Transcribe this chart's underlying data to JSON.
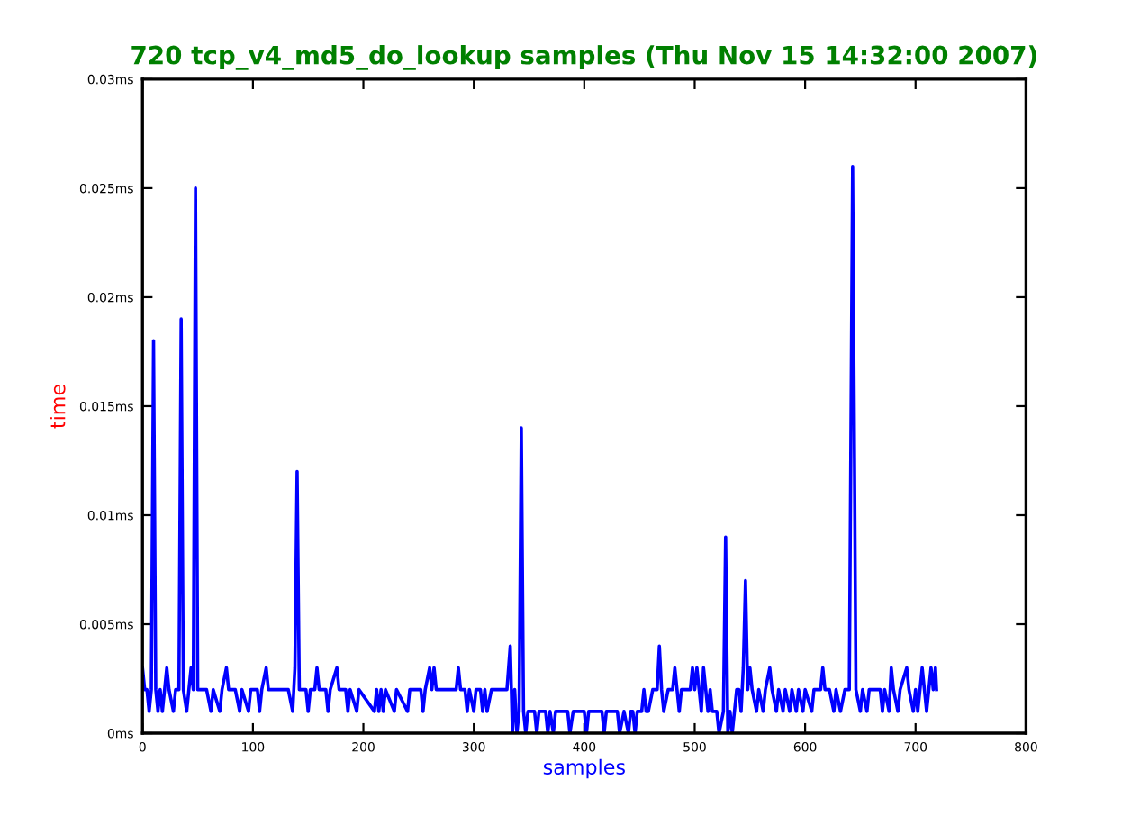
{
  "chart_data": {
    "type": "line",
    "title": "720 tcp_v4_md5_do_lookup samples (Thu Nov 15 14:32:00 2007)",
    "xlabel": "samples",
    "ylabel": "time",
    "series": [
      {
        "color": "#0000ff",
        "x": [
          0,
          2,
          4,
          6,
          8,
          10,
          12,
          14,
          16,
          18,
          20,
          22,
          24,
          28,
          30,
          33,
          35,
          37,
          40,
          42,
          44,
          46,
          48,
          50,
          58,
          62,
          64,
          70,
          72,
          76,
          78,
          84,
          88,
          90,
          96,
          98,
          104,
          106,
          108,
          112,
          114,
          132,
          136,
          138,
          140,
          142,
          148,
          150,
          152,
          156,
          158,
          160,
          166,
          168,
          170,
          176,
          178,
          184,
          186,
          188,
          194,
          196,
          210,
          212,
          214,
          216,
          218,
          220,
          228,
          230,
          240,
          242,
          252,
          254,
          256,
          260,
          262,
          264,
          266,
          284,
          286,
          288,
          292,
          294,
          296,
          300,
          302,
          306,
          308,
          310,
          312,
          316,
          330,
          333,
          335,
          337,
          339,
          341,
          343,
          345,
          347,
          349,
          355,
          357,
          359,
          365,
          367,
          369,
          372,
          374,
          385,
          387,
          390,
          400,
          402,
          404,
          416,
          418,
          420,
          430,
          432,
          436,
          440,
          442,
          444,
          446,
          448,
          452,
          454,
          456,
          458,
          462,
          466,
          468,
          470,
          472,
          476,
          480,
          482,
          484,
          486,
          488,
          496,
          498,
          500,
          502,
          504,
          506,
          508,
          510,
          512,
          514,
          516,
          520,
          522,
          526,
          528,
          530,
          532,
          534,
          536,
          538,
          540,
          542,
          544,
          546,
          548,
          550,
          552,
          556,
          558,
          562,
          564,
          568,
          570,
          574,
          576,
          580,
          582,
          586,
          588,
          592,
          594,
          598,
          600,
          606,
          608,
          614,
          616,
          618,
          622,
          626,
          628,
          632,
          636,
          640,
          643,
          646,
          650,
          652,
          656,
          658,
          668,
          670,
          672,
          676,
          678,
          680,
          684,
          686,
          692,
          694,
          698,
          700,
          702,
          706,
          708,
          710,
          712,
          714,
          716,
          718,
          719
        ],
        "values": [
          0.003,
          0.002,
          0.002,
          0.001,
          0.002,
          0.018,
          0.002,
          0.001,
          0.002,
          0.001,
          0.002,
          0.003,
          0.002,
          0.001,
          0.002,
          0.002,
          0.019,
          0.002,
          0.001,
          0.002,
          0.003,
          0.002,
          0.025,
          0.002,
          0.002,
          0.001,
          0.002,
          0.001,
          0.002,
          0.003,
          0.002,
          0.002,
          0.001,
          0.002,
          0.001,
          0.002,
          0.002,
          0.001,
          0.002,
          0.003,
          0.002,
          0.002,
          0.001,
          0.003,
          0.012,
          0.002,
          0.002,
          0.001,
          0.002,
          0.002,
          0.003,
          0.002,
          0.002,
          0.001,
          0.002,
          0.003,
          0.002,
          0.002,
          0.001,
          0.002,
          0.001,
          0.002,
          0.001,
          0.002,
          0.001,
          0.002,
          0.001,
          0.002,
          0.001,
          0.002,
          0.001,
          0.002,
          0.002,
          0.001,
          0.002,
          0.003,
          0.002,
          0.003,
          0.002,
          0.002,
          0.003,
          0.002,
          0.002,
          0.001,
          0.002,
          0.001,
          0.002,
          0.002,
          0.001,
          0.002,
          0.001,
          0.002,
          0.002,
          0.004,
          0,
          0.002,
          0,
          0.001,
          0.014,
          0.001,
          0,
          0.001,
          0.001,
          0,
          0.001,
          0.001,
          0,
          0.001,
          0,
          0.001,
          0.001,
          0,
          0.001,
          0.001,
          0,
          0.001,
          0.001,
          0,
          0.001,
          0.001,
          0,
          0.001,
          0,
          0.001,
          0.001,
          0,
          0.001,
          0.001,
          0.002,
          0.001,
          0.001,
          0.002,
          0.002,
          0.004,
          0.002,
          0.001,
          0.002,
          0.002,
          0.003,
          0.002,
          0.001,
          0.002,
          0.002,
          0.003,
          0.002,
          0.003,
          0.002,
          0.001,
          0.003,
          0.002,
          0.001,
          0.002,
          0.001,
          0.001,
          0,
          0.001,
          0.009,
          0,
          0.001,
          0,
          0.001,
          0.002,
          0.002,
          0.001,
          0.003,
          0.007,
          0.002,
          0.003,
          0.002,
          0.001,
          0.002,
          0.001,
          0.002,
          0.003,
          0.002,
          0.001,
          0.002,
          0.001,
          0.002,
          0.001,
          0.002,
          0.001,
          0.002,
          0.001,
          0.002,
          0.001,
          0.002,
          0.002,
          0.003,
          0.002,
          0.002,
          0.001,
          0.002,
          0.001,
          0.002,
          0.002,
          0.026,
          0.002,
          0.001,
          0.002,
          0.001,
          0.002,
          0.002,
          0.001,
          0.002,
          0.001,
          0.003,
          0.002,
          0.001,
          0.002,
          0.003,
          0.002,
          0.001,
          0.002,
          0.001,
          0.003,
          0.002,
          0.001,
          0.002,
          0.003,
          0.002,
          0.003,
          0.002
        ]
      }
    ],
    "xlim": [
      0,
      800
    ],
    "xticks": [
      0,
      100,
      200,
      300,
      400,
      500,
      600,
      700,
      800
    ],
    "ylim": [
      0,
      0.03
    ],
    "yticks": [
      {
        "value": 0,
        "label": "0ms"
      },
      {
        "value": 0.005,
        "label": "0.005ms"
      },
      {
        "value": 0.01,
        "label": "0.01ms"
      },
      {
        "value": 0.015,
        "label": "0.015ms"
      },
      {
        "value": 0.02,
        "label": "0.02ms"
      },
      {
        "value": 0.025,
        "label": "0.025ms"
      },
      {
        "value": 0.03,
        "label": "0.03ms"
      }
    ],
    "grid": false,
    "marker": "none",
    "line_style": "solid"
  }
}
